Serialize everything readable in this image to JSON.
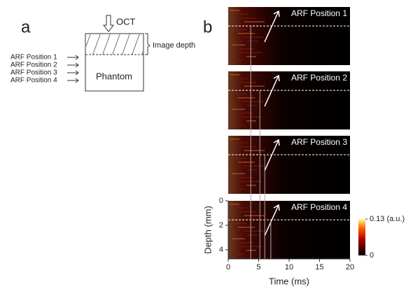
{
  "panel_a": {
    "label": "a",
    "probe": "OCT",
    "image_depth": "Image depth",
    "phantom": "Phantom",
    "positions": [
      "ARF Position 1",
      "ARF Position 2",
      "ARF Position 3",
      "ARF Position 4"
    ]
  },
  "panel_b": {
    "label": "b",
    "panels": [
      "ARF Position 1",
      "ARF Position 2",
      "ARF Position 3",
      "ARF Position 4"
    ],
    "x_label": "Time (ms)",
    "xlim": [
      0,
      20
    ],
    "xticks": [
      0,
      5,
      10,
      15,
      20
    ],
    "y_label": "Depth (mm)",
    "ylim": [
      0,
      4.75
    ],
    "yticks": [
      0,
      2,
      4
    ],
    "dashed_depth": 1.55,
    "onset_times": [
      3.7,
      5.2,
      6.0,
      7.0
    ],
    "colorbar": {
      "lim": [
        0,
        0.13
      ],
      "ticks": [
        {
          "value": 0.13,
          "label": "0.13 (a.u.)"
        },
        0
      ]
    }
  }
}
